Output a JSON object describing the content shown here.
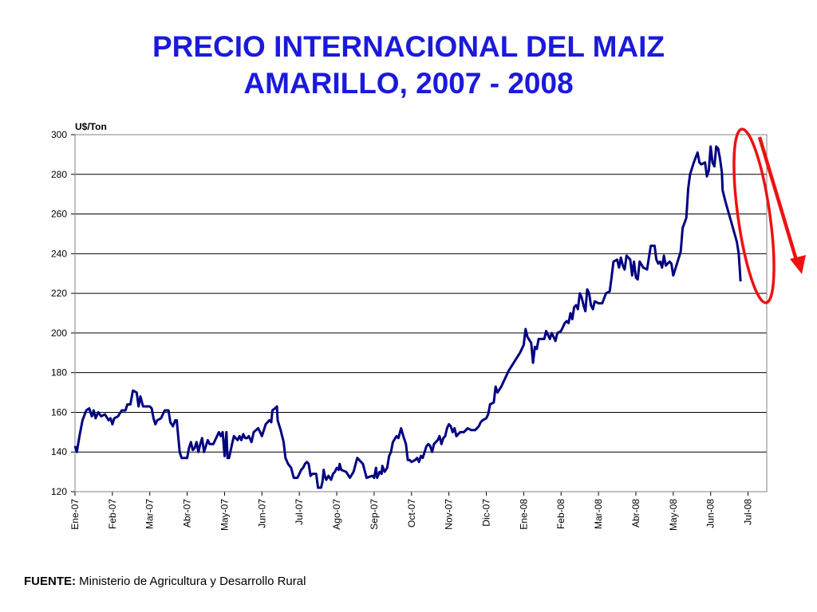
{
  "slide": {
    "title_line1": "PRECIO INTERNACIONAL DEL MAIZ",
    "title_line2": "AMARILLO, 2007 - 2008",
    "source_label": "FUENTE:",
    "source_text": " Ministerio de Agricultura y Desarrollo Rural"
  },
  "chart_data": {
    "type": "line",
    "title": "PRECIO INTERNACIONAL DEL MAIZ AMARILLO, 2007 - 2008",
    "ylabel": "U$/Ton",
    "ylim": [
      120,
      300
    ],
    "yticks": [
      120,
      140,
      160,
      180,
      200,
      220,
      240,
      260,
      280,
      300
    ],
    "xlim": [
      0,
      18.5
    ],
    "grid": "horizontal",
    "categories": [
      "Ene-07",
      "Feb-07",
      "Mar-07",
      "Abr-07",
      "May-07",
      "Jun-07",
      "Jul-07",
      "Ago-07",
      "Sep-07",
      "Oct-07",
      "Nov-07",
      "Dic-07",
      "Ene-08",
      "Feb-08",
      "Mar-08",
      "Abr-08",
      "May-08",
      "Jun-08",
      "Jul-08"
    ],
    "line_color": "#000080",
    "series": [
      {
        "points": [
          [
            0.0,
            143
          ],
          [
            0.05,
            140
          ],
          [
            0.12,
            148
          ],
          [
            0.2,
            156
          ],
          [
            0.3,
            161
          ],
          [
            0.38,
            162
          ],
          [
            0.45,
            158
          ],
          [
            0.5,
            161
          ],
          [
            0.55,
            157
          ],
          [
            0.62,
            160
          ],
          [
            0.7,
            158
          ],
          [
            0.8,
            159
          ],
          [
            0.9,
            156
          ],
          [
            0.95,
            157
          ],
          [
            1.0,
            154
          ],
          [
            1.05,
            157
          ],
          [
            1.15,
            158
          ],
          [
            1.25,
            161
          ],
          [
            1.35,
            161
          ],
          [
            1.4,
            164
          ],
          [
            1.48,
            164
          ],
          [
            1.55,
            171
          ],
          [
            1.65,
            170
          ],
          [
            1.7,
            163
          ],
          [
            1.75,
            168
          ],
          [
            1.82,
            163
          ],
          [
            1.9,
            163
          ],
          [
            2.0,
            163
          ],
          [
            2.05,
            162
          ],
          [
            2.1,
            157
          ],
          [
            2.15,
            154
          ],
          [
            2.2,
            156
          ],
          [
            2.3,
            157
          ],
          [
            2.4,
            161
          ],
          [
            2.5,
            161
          ],
          [
            2.55,
            155
          ],
          [
            2.62,
            153
          ],
          [
            2.68,
            156
          ],
          [
            2.72,
            156
          ],
          [
            2.8,
            140
          ],
          [
            2.85,
            137
          ],
          [
            2.95,
            137
          ],
          [
            3.0,
            137
          ],
          [
            3.05,
            142
          ],
          [
            3.1,
            145
          ],
          [
            3.15,
            141
          ],
          [
            3.2,
            142
          ],
          [
            3.25,
            145
          ],
          [
            3.3,
            140
          ],
          [
            3.35,
            144
          ],
          [
            3.4,
            147
          ],
          [
            3.45,
            140
          ],
          [
            3.55,
            146
          ],
          [
            3.6,
            144
          ],
          [
            3.7,
            144
          ],
          [
            3.75,
            146
          ],
          [
            3.85,
            150
          ],
          [
            3.9,
            148
          ],
          [
            3.95,
            150
          ],
          [
            4.0,
            138
          ],
          [
            4.05,
            150
          ],
          [
            4.08,
            137
          ],
          [
            4.12,
            137
          ],
          [
            4.2,
            144
          ],
          [
            4.25,
            148
          ],
          [
            4.3,
            147
          ],
          [
            4.35,
            146
          ],
          [
            4.4,
            148
          ],
          [
            4.45,
            146
          ],
          [
            4.5,
            149
          ],
          [
            4.55,
            147
          ],
          [
            4.6,
            147
          ],
          [
            4.65,
            148
          ],
          [
            4.72,
            145
          ],
          [
            4.78,
            150
          ],
          [
            4.9,
            152
          ],
          [
            4.95,
            150
          ],
          [
            5.0,
            148
          ],
          [
            5.1,
            154
          ],
          [
            5.2,
            156
          ],
          [
            5.25,
            155
          ],
          [
            5.28,
            161
          ],
          [
            5.35,
            162
          ],
          [
            5.4,
            163
          ],
          [
            5.42,
            156
          ],
          [
            5.5,
            151
          ],
          [
            5.58,
            145
          ],
          [
            5.63,
            137
          ],
          [
            5.7,
            134
          ],
          [
            5.78,
            132
          ],
          [
            5.85,
            127
          ],
          [
            5.95,
            127
          ],
          [
            6.0,
            129
          ],
          [
            6.05,
            131
          ],
          [
            6.1,
            132
          ],
          [
            6.15,
            134
          ],
          [
            6.2,
            135
          ],
          [
            6.25,
            134
          ],
          [
            6.3,
            128
          ],
          [
            6.35,
            129
          ],
          [
            6.45,
            129
          ],
          [
            6.5,
            122
          ],
          [
            6.58,
            122
          ],
          [
            6.62,
            125
          ],
          [
            6.65,
            131
          ],
          [
            6.68,
            128
          ],
          [
            6.72,
            126
          ],
          [
            6.78,
            128
          ],
          [
            6.85,
            126
          ],
          [
            6.9,
            129
          ],
          [
            6.95,
            130
          ],
          [
            7.0,
            132
          ],
          [
            7.05,
            131
          ],
          [
            7.08,
            134
          ],
          [
            7.12,
            131
          ],
          [
            7.25,
            130
          ],
          [
            7.35,
            127
          ],
          [
            7.45,
            130
          ],
          [
            7.55,
            137
          ],
          [
            7.7,
            134
          ],
          [
            7.8,
            127
          ],
          [
            7.95,
            128
          ],
          [
            8.0,
            127
          ],
          [
            8.05,
            132
          ],
          [
            8.08,
            127
          ],
          [
            8.15,
            130
          ],
          [
            8.2,
            129
          ],
          [
            8.22,
            133
          ],
          [
            8.28,
            130
          ],
          [
            8.35,
            132
          ],
          [
            8.4,
            138
          ],
          [
            8.45,
            140
          ],
          [
            8.5,
            145
          ],
          [
            8.6,
            148
          ],
          [
            8.65,
            147
          ],
          [
            8.72,
            152
          ],
          [
            8.78,
            148
          ],
          [
            8.85,
            144
          ],
          [
            8.9,
            136
          ],
          [
            8.95,
            136
          ],
          [
            9.0,
            135
          ],
          [
            9.1,
            136
          ],
          [
            9.15,
            137
          ],
          [
            9.2,
            135
          ],
          [
            9.25,
            138
          ],
          [
            9.3,
            137
          ],
          [
            9.35,
            140
          ],
          [
            9.4,
            143
          ],
          [
            9.45,
            144
          ],
          [
            9.5,
            143
          ],
          [
            9.55,
            140
          ],
          [
            9.6,
            144
          ],
          [
            9.7,
            146
          ],
          [
            9.75,
            148
          ],
          [
            9.8,
            144
          ],
          [
            9.85,
            147
          ],
          [
            9.9,
            148
          ],
          [
            9.95,
            152
          ],
          [
            10.0,
            154
          ],
          [
            10.05,
            153
          ],
          [
            10.1,
            150
          ],
          [
            10.15,
            152
          ],
          [
            10.2,
            148
          ],
          [
            10.3,
            150
          ],
          [
            10.4,
            150
          ],
          [
            10.5,
            152
          ],
          [
            10.6,
            151
          ],
          [
            10.7,
            151
          ],
          [
            10.8,
            153
          ],
          [
            10.85,
            155
          ],
          [
            10.9,
            156
          ],
          [
            11.0,
            157
          ],
          [
            11.05,
            159
          ],
          [
            11.1,
            164
          ],
          [
            11.2,
            165
          ],
          [
            11.25,
            173
          ],
          [
            11.3,
            170
          ],
          [
            11.4,
            173
          ],
          [
            11.5,
            177
          ],
          [
            11.6,
            181
          ],
          [
            11.7,
            184
          ],
          [
            11.8,
            187
          ],
          [
            11.9,
            190
          ],
          [
            12.0,
            194
          ],
          [
            12.05,
            202
          ],
          [
            12.1,
            198
          ],
          [
            12.2,
            195
          ],
          [
            12.25,
            185
          ],
          [
            12.3,
            193
          ],
          [
            12.35,
            192
          ],
          [
            12.4,
            197
          ],
          [
            12.5,
            197
          ],
          [
            12.55,
            197
          ],
          [
            12.6,
            201
          ],
          [
            12.7,
            197
          ],
          [
            12.75,
            200
          ],
          [
            12.85,
            196
          ],
          [
            12.9,
            200
          ],
          [
            13.0,
            201
          ],
          [
            13.1,
            205
          ],
          [
            13.15,
            206
          ],
          [
            13.2,
            205
          ],
          [
            13.25,
            210
          ],
          [
            13.3,
            207
          ],
          [
            13.35,
            213
          ],
          [
            13.4,
            214
          ],
          [
            13.45,
            212
          ],
          [
            13.5,
            220
          ],
          [
            13.55,
            218
          ],
          [
            13.6,
            214
          ],
          [
            13.65,
            211
          ],
          [
            13.7,
            222
          ],
          [
            13.75,
            220
          ],
          [
            13.8,
            214
          ],
          [
            13.85,
            212
          ],
          [
            13.9,
            216
          ],
          [
            14.0,
            215
          ],
          [
            14.1,
            215
          ],
          [
            14.2,
            220
          ],
          [
            14.3,
            221
          ],
          [
            14.35,
            228
          ],
          [
            14.4,
            236
          ],
          [
            14.5,
            237
          ],
          [
            14.55,
            233
          ],
          [
            14.6,
            238
          ],
          [
            14.65,
            234
          ],
          [
            14.7,
            232
          ],
          [
            14.75,
            239
          ],
          [
            14.85,
            237
          ],
          [
            14.9,
            229
          ],
          [
            14.95,
            236
          ],
          [
            15.0,
            228
          ],
          [
            15.05,
            227
          ],
          [
            15.1,
            236
          ],
          [
            15.2,
            233
          ],
          [
            15.3,
            232
          ],
          [
            15.4,
            244
          ],
          [
            15.5,
            244
          ],
          [
            15.55,
            237
          ],
          [
            15.6,
            235
          ],
          [
            15.65,
            236
          ],
          [
            15.7,
            233
          ],
          [
            15.75,
            239
          ],
          [
            15.8,
            234
          ],
          [
            15.9,
            236
          ],
          [
            15.95,
            235
          ],
          [
            16.0,
            229
          ],
          [
            16.1,
            235
          ],
          [
            16.2,
            241
          ],
          [
            16.25,
            253
          ],
          [
            16.35,
            258
          ],
          [
            16.4,
            273
          ],
          [
            16.45,
            280
          ],
          [
            16.55,
            286
          ],
          [
            16.65,
            291
          ],
          [
            16.7,
            286
          ],
          [
            16.75,
            285
          ],
          [
            16.85,
            286
          ],
          [
            16.9,
            279
          ],
          [
            16.95,
            282
          ],
          [
            17.0,
            294
          ],
          [
            17.05,
            286
          ],
          [
            17.1,
            284
          ],
          [
            17.15,
            294
          ],
          [
            17.2,
            293
          ],
          [
            17.25,
            288
          ],
          [
            17.3,
            281
          ],
          [
            17.32,
            272
          ],
          [
            17.4,
            266
          ],
          [
            17.55,
            256
          ],
          [
            17.7,
            246
          ],
          [
            17.75,
            240
          ],
          [
            17.8,
            226
          ]
        ]
      }
    ],
    "annotations": {
      "ellipse_color": "#ee1111",
      "arrow_color": "#ee1111"
    }
  }
}
